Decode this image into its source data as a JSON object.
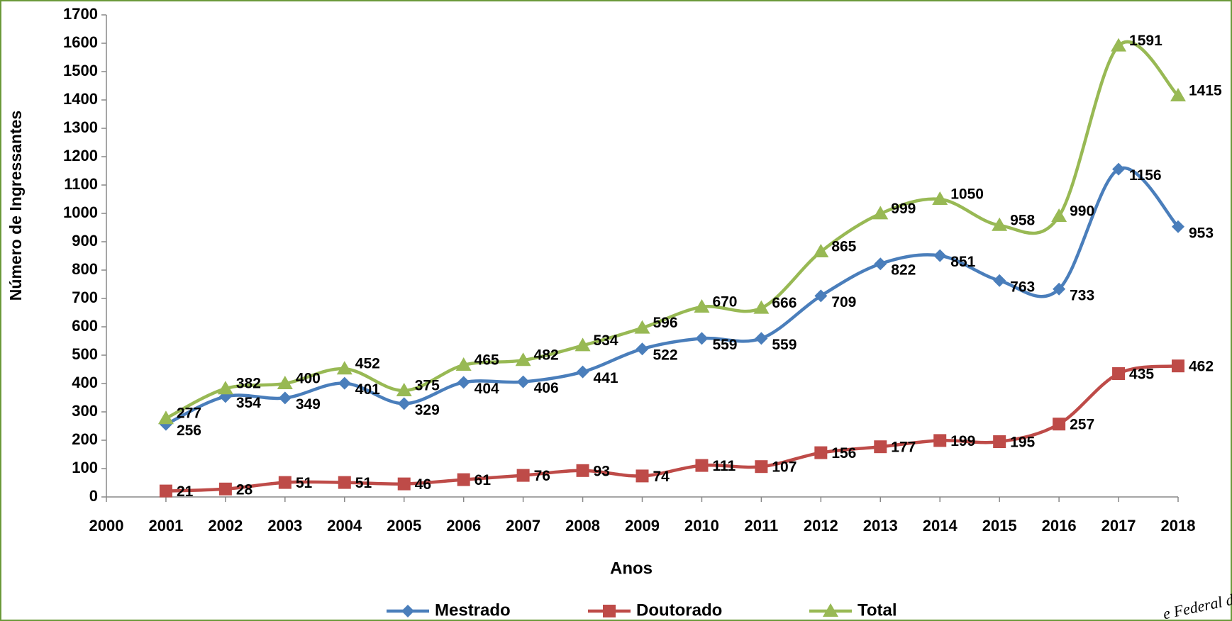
{
  "chart_data": {
    "type": "line",
    "x_label": "Anos",
    "y_label": "Número de Ingressantes",
    "x": [
      2001,
      2002,
      2003,
      2004,
      2005,
      2006,
      2007,
      2008,
      2009,
      2010,
      2011,
      2012,
      2013,
      2014,
      2015,
      2016,
      2017,
      2018
    ],
    "xlim": [
      2000,
      2018
    ],
    "xticks": [
      2000,
      2001,
      2002,
      2003,
      2004,
      2005,
      2006,
      2007,
      2008,
      2009,
      2010,
      2011,
      2012,
      2013,
      2014,
      2015,
      2016,
      2017,
      2018
    ],
    "ylim": [
      0,
      1700
    ],
    "yticks": [
      0,
      100,
      200,
      300,
      400,
      500,
      600,
      700,
      800,
      900,
      1000,
      1100,
      1200,
      1300,
      1400,
      1500,
      1600,
      1700
    ],
    "smooth": true,
    "legend": "bottom",
    "series": [
      {
        "name": "Mestrado",
        "color": "#4a7ebb",
        "marker": "diamond",
        "values": [
          256,
          354,
          349,
          401,
          329,
          404,
          406,
          441,
          522,
          559,
          559,
          709,
          822,
          851,
          763,
          733,
          1156,
          953
        ]
      },
      {
        "name": "Doutorado",
        "color": "#be4b48",
        "marker": "square",
        "values": [
          21,
          28,
          51,
          51,
          46,
          61,
          76,
          93,
          74,
          111,
          107,
          156,
          177,
          199,
          195,
          257,
          435,
          462
        ]
      },
      {
        "name": "Total",
        "color": "#98b954",
        "marker": "triangle",
        "values": [
          277,
          382,
          400,
          452,
          375,
          465,
          482,
          534,
          596,
          670,
          666,
          865,
          999,
          1050,
          958,
          990,
          1591,
          1415
        ]
      }
    ],
    "annotations": [
      "e Federal d"
    ]
  }
}
